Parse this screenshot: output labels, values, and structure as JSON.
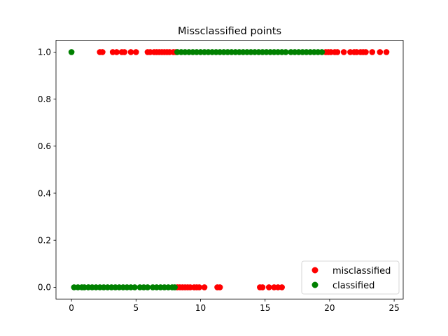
{
  "chart_data": {
    "type": "scatter",
    "title": "Missclassified points",
    "xlabel": "",
    "ylabel": "",
    "xlim": [
      -1.2,
      25.7
    ],
    "ylim": [
      -0.05,
      1.05
    ],
    "xticks": [
      0,
      5,
      10,
      15,
      20,
      25
    ],
    "xtick_labels": [
      "0",
      "5",
      "10",
      "15",
      "20",
      "25"
    ],
    "yticks": [
      0.0,
      0.2,
      0.4,
      0.6,
      0.8,
      1.0
    ],
    "ytick_labels": [
      "0.0",
      "0.2",
      "0.4",
      "0.6",
      "0.8",
      "1.0"
    ],
    "grid": false,
    "legend_position": "lower right",
    "series": [
      {
        "name": "misclassified",
        "color": "#ff0000",
        "points": [
          [
            2.2,
            1
          ],
          [
            2.4,
            1
          ],
          [
            3.2,
            1
          ],
          [
            3.5,
            1
          ],
          [
            3.9,
            1
          ],
          [
            4.1,
            1
          ],
          [
            4.6,
            1
          ],
          [
            5.0,
            1
          ],
          [
            5.9,
            1
          ],
          [
            6.1,
            1
          ],
          [
            6.4,
            1
          ],
          [
            6.6,
            1
          ],
          [
            6.8,
            1
          ],
          [
            7.0,
            1
          ],
          [
            7.2,
            1
          ],
          [
            7.4,
            1
          ],
          [
            7.6,
            1
          ],
          [
            7.9,
            1
          ],
          [
            8.1,
            1
          ],
          [
            19.7,
            1
          ],
          [
            19.9,
            1
          ],
          [
            20.1,
            1
          ],
          [
            20.4,
            1
          ],
          [
            20.6,
            1
          ],
          [
            21.1,
            1
          ],
          [
            21.6,
            1
          ],
          [
            21.9,
            1
          ],
          [
            22.1,
            1
          ],
          [
            22.4,
            1
          ],
          [
            22.6,
            1
          ],
          [
            22.8,
            1
          ],
          [
            23.3,
            1
          ],
          [
            23.9,
            1
          ],
          [
            24.4,
            1
          ],
          [
            8.2,
            0
          ],
          [
            8.4,
            0
          ],
          [
            8.6,
            0
          ],
          [
            8.8,
            0
          ],
          [
            9.0,
            0
          ],
          [
            9.2,
            0
          ],
          [
            9.5,
            0
          ],
          [
            9.7,
            0
          ],
          [
            9.9,
            0
          ],
          [
            10.3,
            0
          ],
          [
            11.3,
            0
          ],
          [
            11.5,
            0
          ],
          [
            14.6,
            0
          ],
          [
            14.8,
            0
          ],
          [
            15.3,
            0
          ],
          [
            15.7,
            0
          ],
          [
            16.0,
            0
          ],
          [
            16.3,
            0
          ]
        ]
      },
      {
        "name": "classified",
        "color": "#008000",
        "points": [
          [
            0.0,
            1
          ],
          [
            8.2,
            1
          ],
          [
            8.5,
            1
          ],
          [
            8.8,
            1
          ],
          [
            9.1,
            1
          ],
          [
            9.4,
            1
          ],
          [
            9.7,
            1
          ],
          [
            10.0,
            1
          ],
          [
            10.3,
            1
          ],
          [
            10.6,
            1
          ],
          [
            10.9,
            1
          ],
          [
            11.2,
            1
          ],
          [
            11.5,
            1
          ],
          [
            11.8,
            1
          ],
          [
            12.1,
            1
          ],
          [
            12.4,
            1
          ],
          [
            12.7,
            1
          ],
          [
            13.0,
            1
          ],
          [
            13.3,
            1
          ],
          [
            13.6,
            1
          ],
          [
            13.9,
            1
          ],
          [
            14.2,
            1
          ],
          [
            14.5,
            1
          ],
          [
            14.8,
            1
          ],
          [
            15.1,
            1
          ],
          [
            15.4,
            1
          ],
          [
            15.7,
            1
          ],
          [
            16.0,
            1
          ],
          [
            16.3,
            1
          ],
          [
            16.6,
            1
          ],
          [
            17.0,
            1
          ],
          [
            17.3,
            1
          ],
          [
            17.6,
            1
          ],
          [
            17.9,
            1
          ],
          [
            18.2,
            1
          ],
          [
            18.5,
            1
          ],
          [
            18.8,
            1
          ],
          [
            19.1,
            1
          ],
          [
            19.4,
            1
          ],
          [
            0.2,
            0
          ],
          [
            0.5,
            0
          ],
          [
            0.8,
            0
          ],
          [
            1.0,
            0
          ],
          [
            1.3,
            0
          ],
          [
            1.6,
            0
          ],
          [
            1.9,
            0
          ],
          [
            2.2,
            0
          ],
          [
            2.5,
            0
          ],
          [
            2.8,
            0
          ],
          [
            3.1,
            0
          ],
          [
            3.4,
            0
          ],
          [
            3.7,
            0
          ],
          [
            4.0,
            0
          ],
          [
            4.3,
            0
          ],
          [
            4.6,
            0
          ],
          [
            4.9,
            0
          ],
          [
            5.3,
            0
          ],
          [
            5.6,
            0
          ],
          [
            5.9,
            0
          ],
          [
            6.3,
            0
          ],
          [
            6.6,
            0
          ],
          [
            6.9,
            0
          ],
          [
            7.2,
            0
          ],
          [
            7.5,
            0
          ],
          [
            7.8,
            0
          ],
          [
            8.0,
            0
          ]
        ]
      }
    ]
  }
}
